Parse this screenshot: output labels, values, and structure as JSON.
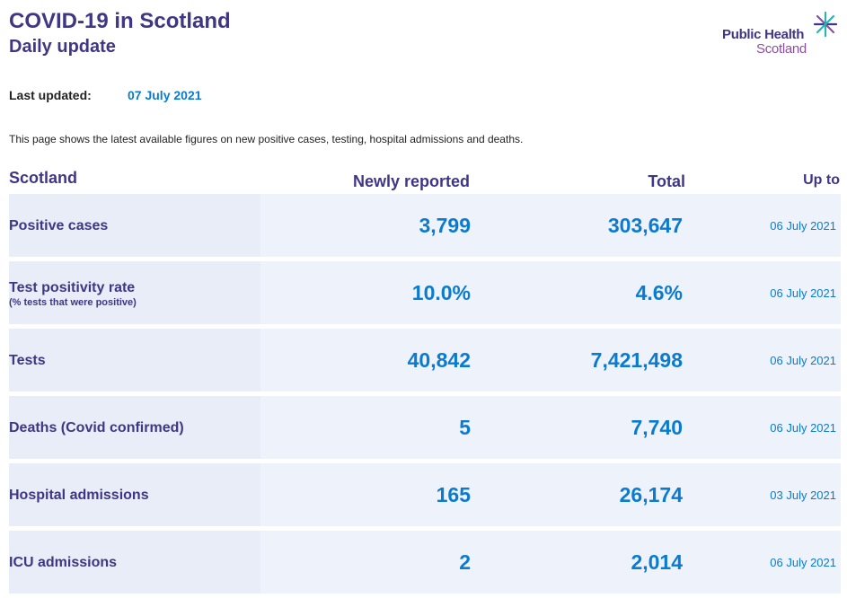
{
  "header": {
    "title": "COVID-19 in Scotland",
    "subtitle": "Daily update",
    "logo": {
      "line1": "Public Health",
      "line2": "Scotland",
      "icon": "phs-star-icon"
    }
  },
  "updated": {
    "label": "Last updated:",
    "value": "07 July 2021"
  },
  "intro": "This page shows the latest available figures on new positive cases, testing, hospital admissions and deaths.",
  "table": {
    "headers": {
      "region": "Scotland",
      "new": "Newly reported",
      "total": "Total",
      "upto": "Up to"
    },
    "rows": [
      {
        "label": "Positive cases",
        "sublabel": "",
        "new": "3,799",
        "total": "303,647",
        "date": "06 July 2021"
      },
      {
        "label": "Test positivity rate",
        "sublabel": "(% tests that were positive)",
        "new": "10.0%",
        "total": "4.6%",
        "date": "06 July 2021"
      },
      {
        "label": "Tests",
        "sublabel": "",
        "new": "40,842",
        "total": "7,421,498",
        "date": "06 July 2021"
      },
      {
        "label": "Deaths (Covid confirmed)",
        "sublabel": "",
        "new": "5",
        "total": "7,740",
        "date": "06 July 2021"
      },
      {
        "label": "Hospital admissions",
        "sublabel": "",
        "new": "165",
        "total": "26,174",
        "date": "03 July 2021"
      },
      {
        "label": "ICU admissions",
        "sublabel": "",
        "new": "2",
        "total": "2,014",
        "date": "06 July 2021"
      }
    ]
  },
  "colors": {
    "heading": "#3f3685",
    "value": "#0b7bd0",
    "row_bg": "#eef2fa",
    "label_bg": "#e8edf7",
    "logo_accent": "#8a4fa0",
    "star_teal": "#2bb3b1"
  }
}
